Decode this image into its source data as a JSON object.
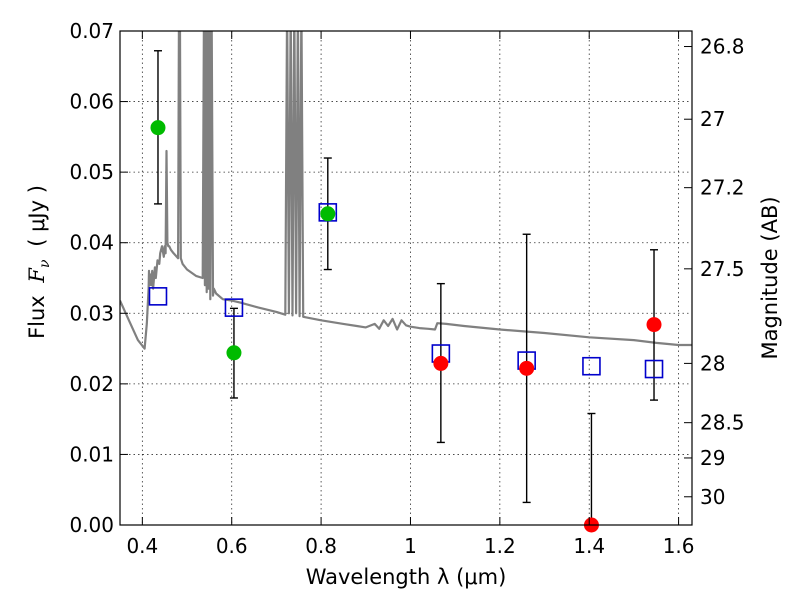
{
  "chart_data": {
    "type": "scatter",
    "xlabel": "Wavelength  λ (μm)",
    "ylabel_parts": {
      "prefix": "Flux",
      "symbol": "F",
      "subscript": "ν",
      "unit": "( μJy )"
    },
    "ylabel_right": "Magnitude (AB)",
    "xlim": [
      0.35,
      1.63
    ],
    "ylim": [
      0.0,
      0.07
    ],
    "grid": true,
    "x_ticks": [
      0.4,
      0.6,
      0.8,
      1.0,
      1.2,
      1.4,
      1.6
    ],
    "x_tick_labels": [
      "0.4",
      "0.6",
      "0.8",
      "1",
      "1.2",
      "1.4",
      "1.6"
    ],
    "y_ticks": [
      0.0,
      0.01,
      0.02,
      0.03,
      0.04,
      0.05,
      0.06,
      0.07
    ],
    "y_tick_labels": [
      "0.00",
      "0.01",
      "0.02",
      "0.03",
      "0.04",
      "0.05",
      "0.06",
      "0.07"
    ],
    "mag_ticks": [
      {
        "label": "26.8",
        "flux": 0.0678
      },
      {
        "label": "27",
        "flux": 0.0575
      },
      {
        "label": "27.2",
        "flux": 0.0478
      },
      {
        "label": "27.5",
        "flux": 0.0363
      },
      {
        "label": "28",
        "flux": 0.0229
      },
      {
        "label": "28.5",
        "flux": 0.0145
      },
      {
        "label": "29",
        "flux": 0.0095
      },
      {
        "label": "30",
        "flux": 0.004
      }
    ],
    "sed_model": {
      "name": "model spectrum",
      "color": "#808080",
      "x": [
        0.35,
        0.37,
        0.39,
        0.405,
        0.41,
        0.412,
        0.414,
        0.415,
        0.416,
        0.418,
        0.42,
        0.422,
        0.424,
        0.426,
        0.428,
        0.43,
        0.434,
        0.438,
        0.44,
        0.444,
        0.448,
        0.45,
        0.452,
        0.454,
        0.456,
        0.458,
        0.46,
        0.464,
        0.47,
        0.48,
        0.482,
        0.484,
        0.486,
        0.49,
        0.5,
        0.52,
        0.535,
        0.538,
        0.54,
        0.542,
        0.544,
        0.546,
        0.548,
        0.55,
        0.552,
        0.555,
        0.558,
        0.56,
        0.565,
        0.58,
        0.6,
        0.62,
        0.66,
        0.7,
        0.72,
        0.724,
        0.728,
        0.732,
        0.736,
        0.74,
        0.744,
        0.748,
        0.752,
        0.756,
        0.76,
        0.8,
        0.85,
        0.88,
        0.9,
        0.92,
        0.93,
        0.94,
        0.95,
        0.96,
        0.97,
        0.98,
        0.99,
        1.0,
        1.02,
        1.04,
        1.055,
        1.06,
        1.08,
        1.12,
        1.2,
        1.3,
        1.4,
        1.5,
        1.55,
        1.6,
        1.63
      ],
      "y": [
        0.0318,
        0.029,
        0.0262,
        0.025,
        0.0285,
        0.031,
        0.0335,
        0.036,
        0.034,
        0.0355,
        0.034,
        0.036,
        0.0335,
        0.035,
        0.0365,
        0.035,
        0.0375,
        0.037,
        0.0385,
        0.0395,
        0.038,
        0.0395,
        0.0385,
        0.053,
        0.04,
        0.0395,
        0.0395,
        0.039,
        0.0385,
        0.0378,
        0.074,
        0.074,
        0.0378,
        0.037,
        0.0362,
        0.0353,
        0.035,
        0.074,
        0.034,
        0.074,
        0.033,
        0.074,
        0.0335,
        0.074,
        0.032,
        0.074,
        0.0325,
        0.0335,
        0.0328,
        0.032,
        0.0318,
        0.0315,
        0.0308,
        0.0302,
        0.0298,
        0.074,
        0.03,
        0.074,
        0.0297,
        0.074,
        0.03,
        0.074,
        0.0296,
        0.074,
        0.0295,
        0.029,
        0.0285,
        0.0282,
        0.028,
        0.0285,
        0.0278,
        0.029,
        0.0282,
        0.0292,
        0.0277,
        0.029,
        0.0283,
        0.0281,
        0.0279,
        0.0278,
        0.0277,
        0.0286,
        0.0285,
        0.0282,
        0.0277,
        0.0272,
        0.0266,
        0.0262,
        0.0258,
        0.0255,
        0.0255
      ]
    },
    "detections_green": {
      "name": "green photometry",
      "color": "#00bb00",
      "points": [
        {
          "x": 0.435,
          "y": 0.0563,
          "err_low": 0.0455,
          "err_high": 0.0672
        },
        {
          "x": 0.605,
          "y": 0.0244,
          "err_low": 0.018,
          "err_high": 0.0307
        },
        {
          "x": 0.815,
          "y": 0.0441,
          "err_low": 0.0362,
          "err_high": 0.052
        }
      ]
    },
    "detections_red": {
      "name": "red photometry",
      "color": "#ff0000",
      "points": [
        {
          "x": 1.068,
          "y": 0.0229,
          "err_low": 0.0117,
          "err_high": 0.0342
        },
        {
          "x": 1.26,
          "y": 0.0222,
          "err_low": 0.0032,
          "err_high": 0.0412
        },
        {
          "x": 1.405,
          "y": 0.0,
          "err_low": 0.0,
          "err_high": 0.0158
        },
        {
          "x": 1.545,
          "y": 0.0284,
          "err_low": 0.0177,
          "err_high": 0.039
        }
      ]
    },
    "model_photometry": {
      "name": "model photometry (open squares)",
      "color": "#0000cc",
      "points": [
        {
          "x": 0.435,
          "y": 0.0324
        },
        {
          "x": 0.605,
          "y": 0.0308
        },
        {
          "x": 0.815,
          "y": 0.0443
        },
        {
          "x": 1.068,
          "y": 0.0243
        },
        {
          "x": 1.26,
          "y": 0.0233
        },
        {
          "x": 1.405,
          "y": 0.0225
        },
        {
          "x": 1.545,
          "y": 0.0221
        }
      ]
    }
  }
}
